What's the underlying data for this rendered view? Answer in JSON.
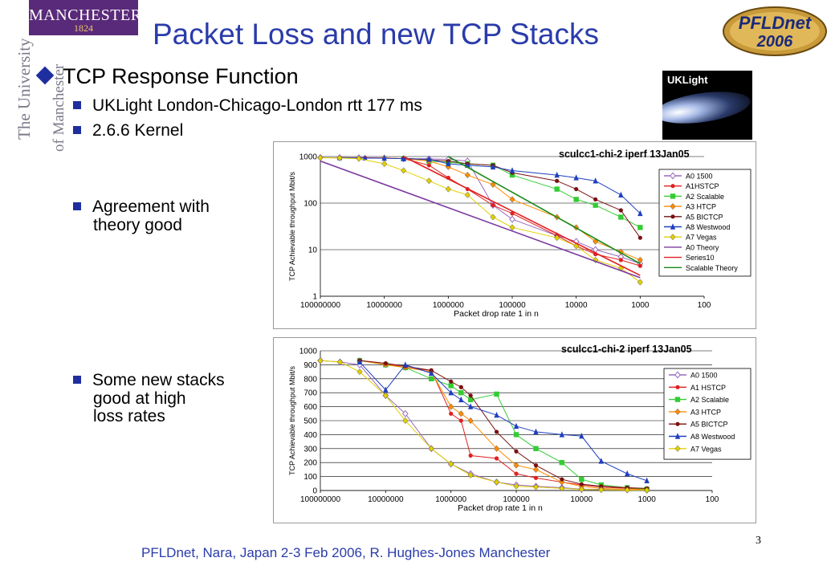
{
  "logo": {
    "name": "MANCHESTER",
    "year": "1824",
    "vertical1": "The University",
    "vertical2": "of Manchester"
  },
  "pfldnet_logo": {
    "line1": "PFLDnet",
    "line2": "2006"
  },
  "uklight_image": {
    "label": "UKLight"
  },
  "title": "Packet Loss and new TCP Stacks",
  "bullet_main": "TCP Response Function",
  "bullets": [
    "UKLight London-Chicago-London rtt 177 ms",
    "2.6.6 Kernel",
    "Agreement with theory good",
    "Some new stacks good at high loss rates"
  ],
  "bullet_lines": {
    "agreement": [
      "Agreement with",
      "theory good"
    ],
    "newstacks": [
      "Some new stacks",
      "good at high",
      "loss rates"
    ]
  },
  "footer": "PFLDnet, Nara, Japan 2-3 Feb 2006,  R. Hughes-Jones  Manchester",
  "page_number": "3",
  "chart_data": [
    {
      "type": "line",
      "title": "sculcc1-chi-2 iperf 13Jan05",
      "xlabel": "Packet drop rate 1 in n",
      "ylabel": "TCP Achievable throughput Mbit/s",
      "x_scale": "log",
      "y_scale": "log",
      "xlim": [
        100000000,
        100
      ],
      "ylim": [
        1,
        1000
      ],
      "x_ticks": [
        "100000000",
        "10000000",
        "1000000",
        "100000",
        "10000",
        "1000",
        "100"
      ],
      "y_ticks": [
        "1000",
        "100",
        "10",
        "1"
      ],
      "grid": true,
      "legend_position": "right",
      "series": [
        {
          "name": "A0 1500",
          "color": "#9a6abf",
          "marker": "diamond-open",
          "points": [
            [
              100000000,
              950
            ],
            [
              50000000,
              940
            ],
            [
              25000000,
              940
            ],
            [
              5000000,
              900
            ],
            [
              2000000,
              890
            ],
            [
              1000000,
              870
            ],
            [
              500000,
              800
            ],
            [
              200000,
              90
            ],
            [
              100000,
              45
            ],
            [
              20000,
              20
            ],
            [
              10000,
              15
            ],
            [
              5000,
              10
            ],
            [
              2000,
              7
            ],
            [
              1000,
              5
            ]
          ]
        },
        {
          "name": "A1HSTCP",
          "color": "#e02020",
          "marker": "circle",
          "points": [
            [
              50000000,
              950
            ],
            [
              20000000,
              940
            ],
            [
              10000000,
              935
            ],
            [
              5000000,
              900
            ],
            [
              2000000,
              650
            ],
            [
              1000000,
              350
            ],
            [
              500000,
              200
            ],
            [
              200000,
              90
            ],
            [
              100000,
              60
            ],
            [
              20000,
              20
            ],
            [
              10000,
              12
            ],
            [
              5000,
              8
            ],
            [
              2000,
              6
            ],
            [
              1000,
              4.5
            ]
          ]
        },
        {
          "name": "A2 Scalable",
          "color": "#33cc33",
          "marker": "square",
          "points": [
            [
              5000000,
              900
            ],
            [
              2000000,
              800
            ],
            [
              1000000,
              750
            ],
            [
              500000,
              700
            ],
            [
              200000,
              650
            ],
            [
              100000,
              400
            ],
            [
              20000,
              200
            ],
            [
              10000,
              120
            ],
            [
              5000,
              90
            ],
            [
              2000,
              50
            ],
            [
              1000,
              30
            ]
          ]
        },
        {
          "name": "A3 HTCP",
          "color": "#ff8c00",
          "marker": "diamond",
          "points": [
            [
              10000000,
              940
            ],
            [
              5000000,
              900
            ],
            [
              2000000,
              800
            ],
            [
              1000000,
              600
            ],
            [
              500000,
              400
            ],
            [
              200000,
              250
            ],
            [
              100000,
              120
            ],
            [
              20000,
              50
            ],
            [
              10000,
              30
            ],
            [
              5000,
              15
            ],
            [
              2000,
              9
            ],
            [
              1000,
              6
            ]
          ]
        },
        {
          "name": "A5 BICTCP",
          "color": "#7a1010",
          "marker": "circle",
          "points": [
            [
              5000000,
              920
            ],
            [
              2000000,
              850
            ],
            [
              1000000,
              800
            ],
            [
              500000,
              700
            ],
            [
              200000,
              650
            ],
            [
              100000,
              450
            ],
            [
              20000,
              300
            ],
            [
              10000,
              200
            ],
            [
              5000,
              120
            ],
            [
              2000,
              70
            ],
            [
              1000,
              18
            ]
          ]
        },
        {
          "name": "A8 Westwood",
          "color": "#1f3fbf",
          "marker": "triangle",
          "points": [
            [
              50000000,
              950
            ],
            [
              20000000,
              930
            ],
            [
              10000000,
              920
            ],
            [
              5000000,
              900
            ],
            [
              2000000,
              880
            ],
            [
              1000000,
              700
            ],
            [
              500000,
              650
            ],
            [
              200000,
              600
            ],
            [
              100000,
              500
            ],
            [
              20000,
              400
            ],
            [
              10000,
              350
            ],
            [
              5000,
              300
            ],
            [
              2000,
              150
            ],
            [
              1000,
              60
            ]
          ]
        },
        {
          "name": "A7 Vegas",
          "color": "#e0d000",
          "marker": "diamond",
          "points": [
            [
              100000000,
              940
            ],
            [
              50000000,
              930
            ],
            [
              25000000,
              900
            ],
            [
              10000000,
              700
            ],
            [
              5000000,
              500
            ],
            [
              2000000,
              300
            ],
            [
              1000000,
              200
            ],
            [
              500000,
              150
            ],
            [
              200000,
              50
            ],
            [
              100000,
              30
            ],
            [
              20000,
              18
            ],
            [
              10000,
              12
            ],
            [
              5000,
              6
            ],
            [
              2000,
              4
            ],
            [
              1000,
              2
            ]
          ]
        },
        {
          "name": "A0 Theory",
          "color": "#7a3aa0",
          "marker": "none",
          "points": [
            [
              100000000,
              800
            ],
            [
              1000,
              2.5
            ]
          ]
        },
        {
          "name": "Series10",
          "color": "#e02020",
          "marker": "none",
          "points": [
            [
              5000000,
              1000
            ],
            [
              1000,
              2.8
            ]
          ]
        },
        {
          "name": "Scalable Theory",
          "color": "#1a8a1a",
          "marker": "none",
          "points": [
            [
              1000000,
              1000
            ],
            [
              1000,
              5
            ]
          ]
        }
      ]
    },
    {
      "type": "line",
      "title": "sculcc1-chi-2 iperf 13Jan05",
      "xlabel": "Packet drop rate 1 in n",
      "ylabel": "TCP Achievable throughput Mbit/s",
      "x_scale": "log",
      "y_scale": "linear",
      "xlim": [
        100000000,
        100
      ],
      "ylim": [
        0,
        1000
      ],
      "x_ticks": [
        "100000000",
        "10000000",
        "1000000",
        "100000",
        "10000",
        "1000",
        "100"
      ],
      "y_ticks": [
        "1000",
        "900",
        "800",
        "700",
        "600",
        "500",
        "400",
        "300",
        "200",
        "100",
        "0"
      ],
      "grid": true,
      "legend_position": "right",
      "series": [
        {
          "name": "A0 1500",
          "color": "#9a6abf",
          "marker": "diamond-open",
          "points": [
            [
              100000000,
              930
            ],
            [
              50000000,
              920
            ],
            [
              25000000,
              900
            ],
            [
              10000000,
              680
            ],
            [
              5000000,
              550
            ],
            [
              2000000,
              300
            ],
            [
              1000000,
              190
            ],
            [
              500000,
              120
            ],
            [
              200000,
              60
            ],
            [
              100000,
              40
            ],
            [
              50000,
              30
            ],
            [
              20000,
              20
            ],
            [
              10000,
              10
            ],
            [
              5000,
              8
            ],
            [
              2000,
              5
            ],
            [
              1000,
              3
            ]
          ]
        },
        {
          "name": "A1 HSTCP",
          "color": "#e02020",
          "marker": "circle",
          "points": [
            [
              25000000,
              930
            ],
            [
              10000000,
              910
            ],
            [
              5000000,
              880
            ],
            [
              2000000,
              860
            ],
            [
              1000000,
              550
            ],
            [
              700000,
              500
            ],
            [
              500000,
              250
            ],
            [
              200000,
              230
            ],
            [
              100000,
              120
            ],
            [
              50000,
              90
            ],
            [
              20000,
              60
            ],
            [
              10000,
              40
            ],
            [
              5000,
              25
            ],
            [
              2000,
              15
            ],
            [
              1000,
              8
            ]
          ]
        },
        {
          "name": "A2 Scalable",
          "color": "#33cc33",
          "marker": "square",
          "points": [
            [
              25000000,
              930
            ],
            [
              10000000,
              900
            ],
            [
              5000000,
              880
            ],
            [
              2000000,
              800
            ],
            [
              1000000,
              750
            ],
            [
              700000,
              700
            ],
            [
              500000,
              650
            ],
            [
              200000,
              690
            ],
            [
              100000,
              400
            ],
            [
              50000,
              300
            ],
            [
              20000,
              200
            ],
            [
              10000,
              80
            ],
            [
              5000,
              40
            ],
            [
              2000,
              20
            ],
            [
              1000,
              10
            ]
          ]
        },
        {
          "name": "A3 HTCP",
          "color": "#ff8c00",
          "marker": "diamond",
          "points": [
            [
              25000000,
              930
            ],
            [
              10000000,
              900
            ],
            [
              5000000,
              880
            ],
            [
              2000000,
              850
            ],
            [
              1000000,
              600
            ],
            [
              700000,
              550
            ],
            [
              500000,
              500
            ],
            [
              200000,
              300
            ],
            [
              100000,
              180
            ],
            [
              50000,
              150
            ],
            [
              20000,
              60
            ],
            [
              10000,
              30
            ],
            [
              5000,
              15
            ],
            [
              2000,
              8
            ],
            [
              1000,
              5
            ]
          ]
        },
        {
          "name": "A5 BICTCP",
          "color": "#7a1010",
          "marker": "circle",
          "points": [
            [
              25000000,
              930
            ],
            [
              10000000,
              910
            ],
            [
              5000000,
              890
            ],
            [
              2000000,
              860
            ],
            [
              1000000,
              780
            ],
            [
              700000,
              740
            ],
            [
              500000,
              680
            ],
            [
              200000,
              420
            ],
            [
              100000,
              280
            ],
            [
              50000,
              180
            ],
            [
              20000,
              80
            ],
            [
              10000,
              45
            ],
            [
              5000,
              30
            ],
            [
              2000,
              20
            ],
            [
              1000,
              15
            ]
          ]
        },
        {
          "name": "A8 Westwood",
          "color": "#1f3fbf",
          "marker": "triangle",
          "points": [
            [
              25000000,
              920
            ],
            [
              10000000,
              720
            ],
            [
              5000000,
              900
            ],
            [
              2000000,
              840
            ],
            [
              1000000,
              700
            ],
            [
              700000,
              650
            ],
            [
              500000,
              600
            ],
            [
              200000,
              540
            ],
            [
              100000,
              460
            ],
            [
              50000,
              420
            ],
            [
              20000,
              400
            ],
            [
              10000,
              390
            ],
            [
              5000,
              210
            ],
            [
              2000,
              120
            ],
            [
              1000,
              70
            ]
          ]
        },
        {
          "name": "A7 Vegas",
          "color": "#e0d000",
          "marker": "diamond",
          "points": [
            [
              100000000,
              930
            ],
            [
              50000000,
              920
            ],
            [
              25000000,
              850
            ],
            [
              10000000,
              680
            ],
            [
              5000000,
              500
            ],
            [
              2000000,
              300
            ],
            [
              1000000,
              190
            ],
            [
              500000,
              110
            ],
            [
              200000,
              60
            ],
            [
              100000,
              30
            ],
            [
              50000,
              25
            ],
            [
              20000,
              15
            ],
            [
              10000,
              8
            ],
            [
              5000,
              5
            ],
            [
              2000,
              3
            ],
            [
              1000,
              2
            ]
          ]
        }
      ]
    }
  ]
}
